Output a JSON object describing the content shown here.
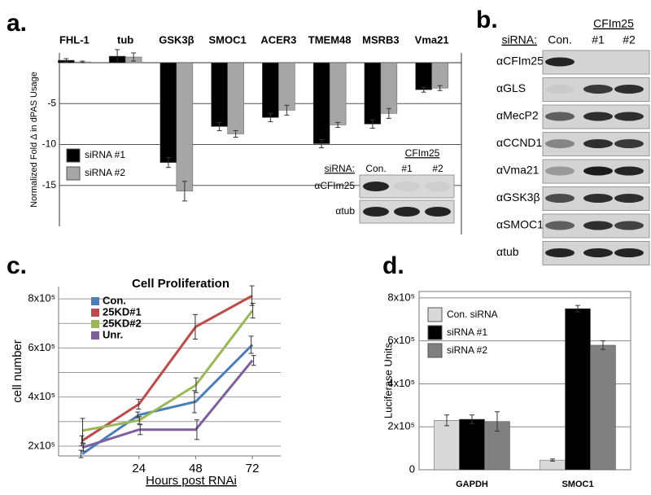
{
  "chart_data": [
    {
      "type": "bar",
      "label": "a.",
      "ylabel": "Normalized Fold Δ in dPAS Usage",
      "categories": [
        "FHL-1",
        "tub",
        "GSK3β",
        "SMOC1",
        "ACER3",
        "TMEM48",
        "MSRB3",
        "Vma21"
      ],
      "series": [
        {
          "name": "siRNA #1",
          "color": "#000000",
          "values": [
            0.3,
            0.8,
            -12.2,
            -7.8,
            -6.7,
            -9.9,
            -7.5,
            -3.3
          ],
          "errors": [
            0.2,
            0.8,
            0.6,
            0.5,
            0.5,
            0.5,
            0.5,
            0.3
          ]
        },
        {
          "name": "siRNA #2",
          "color": "#a6a6a6",
          "values": [
            0.1,
            0.7,
            -15.7,
            -8.7,
            -5.8,
            -7.6,
            -6.2,
            -3.1
          ],
          "errors": [
            0.1,
            0.5,
            1.2,
            0.4,
            0.6,
            0.3,
            0.6,
            0.3
          ]
        }
      ],
      "ylim": [
        -20,
        1.2
      ],
      "yticks": [
        -5,
        -10,
        -15
      ],
      "grid": true,
      "inset": {
        "siRNA_label": "siRNA:",
        "group": "CFIm25",
        "lanes": [
          "Con.",
          "#1",
          "#2"
        ],
        "rows": [
          "αCFIm25",
          "αtub"
        ]
      }
    },
    {
      "type": "line",
      "label": "c.",
      "title": "Cell Proliferation",
      "xlabel": "Hours post RNAi",
      "ylabel": "cell number",
      "x": [
        0,
        24,
        48,
        72
      ],
      "series": [
        {
          "name": "Con.",
          "color": "#4a7ebb",
          "values": [
            168000,
            327000,
            381000,
            613000
          ],
          "errors": [
            15000,
            12000,
            45000,
            35000
          ]
        },
        {
          "name": "25KD#1",
          "color": "#be4b48",
          "values": [
            222000,
            371000,
            686000,
            813000
          ],
          "errors": [
            20000,
            20000,
            50000,
            40000
          ]
        },
        {
          "name": "25KD#2",
          "color": "#98b954",
          "values": [
            263000,
            305000,
            448000,
            752000
          ],
          "errors": [
            50000,
            15000,
            30000,
            30000
          ]
        },
        {
          "name": "Unr.",
          "color": "#7d5fa0",
          "values": [
            194000,
            267000,
            267000,
            549000
          ],
          "errors": [
            15000,
            20000,
            40000,
            20000
          ]
        }
      ],
      "xlim": [
        -10,
        84
      ],
      "xticks": [
        24,
        48,
        72
      ],
      "ylim": [
        160000,
        850000
      ],
      "yticks": [
        {
          "value": 200000,
          "label": "2x10⁵"
        },
        {
          "value": 400000,
          "label": "4x10⁵"
        },
        {
          "value": 600000,
          "label": "6x10⁵"
        },
        {
          "value": 800000,
          "label": "8x10⁵"
        }
      ],
      "minor_grid": [
        300000,
        500000,
        700000
      ],
      "grid": true
    },
    {
      "type": "bar",
      "label": "d.",
      "ylabel": "Luciferase Units",
      "categories": [
        "GAPDH",
        "SMOC1"
      ],
      "series": [
        {
          "name": "Con. siRNA",
          "color": "#d9d9d9",
          "values": [
            230000,
            45000
          ],
          "errors": [
            25000,
            5000
          ]
        },
        {
          "name": "siRNA #1",
          "color": "#000000",
          "values": [
            235000,
            750000
          ],
          "errors": [
            20000,
            15000
          ]
        },
        {
          "name": "siRNA #2",
          "color": "#808080",
          "values": [
            225000,
            580000
          ],
          "errors": [
            45000,
            20000
          ]
        }
      ],
      "ylim": [
        0,
        830000
      ],
      "yticks": [
        0,
        {
          "value": 200000,
          "label": "2x10⁵"
        },
        {
          "value": 400000,
          "label": "4x10⁵"
        },
        {
          "value": 600000,
          "label": "6x10⁵"
        },
        {
          "value": 800000,
          "label": "8x10⁵"
        }
      ],
      "grid": true
    }
  ],
  "blots": {
    "label": "b.",
    "siRNA_label": "siRNA:",
    "group": "CFIm25",
    "lanes": [
      "Con.",
      "#1",
      "#2"
    ],
    "rows": [
      "αCFIm25",
      "αGLS",
      "αMecP2",
      "αCCND1",
      "αVma21",
      "αGSK3β",
      "αSMOC1",
      "αtub"
    ]
  }
}
